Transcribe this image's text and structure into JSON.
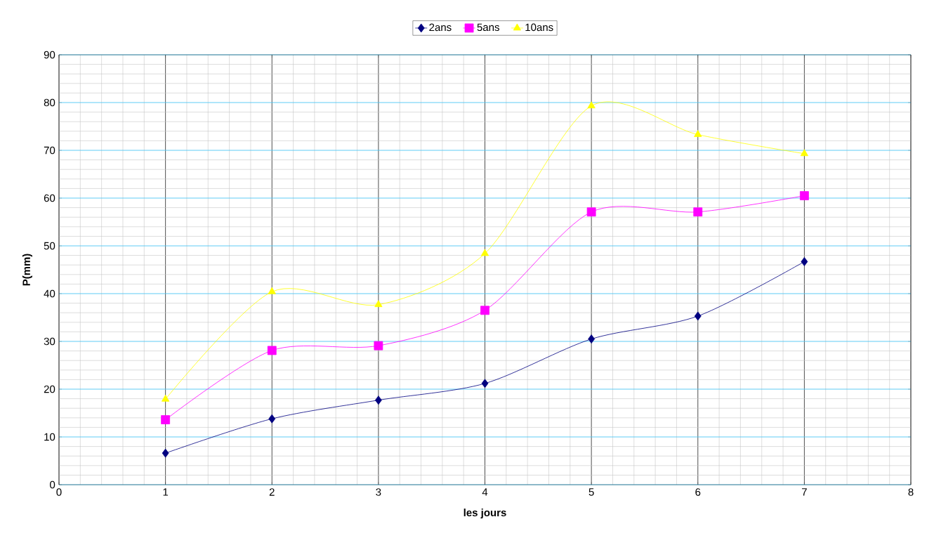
{
  "chart_data": {
    "type": "line",
    "xlabel": "les jours",
    "ylabel": "P(mm)",
    "x": [
      1,
      2,
      3,
      4,
      5,
      6,
      7
    ],
    "series": [
      {
        "name": "2ans",
        "color": "#000080",
        "marker": "diamond",
        "values": [
          6.6,
          13.8,
          17.7,
          21.2,
          30.5,
          35.3,
          46.7
        ]
      },
      {
        "name": "5ans",
        "color": "#ff00ff",
        "marker": "square",
        "values": [
          13.6,
          28.1,
          29.1,
          36.5,
          57.1,
          57.1,
          60.5
        ]
      },
      {
        "name": "10ans",
        "color": "#ffff00",
        "marker": "triangle",
        "values": [
          17.9,
          40.4,
          37.7,
          48.4,
          79.3,
          73.3,
          69.3
        ]
      }
    ],
    "xlim": [
      0,
      8
    ],
    "xticks": [
      0,
      1,
      2,
      3,
      4,
      5,
      6,
      7,
      8
    ],
    "ylim": [
      0,
      90
    ],
    "yticks": [
      0,
      10,
      20,
      30,
      40,
      50,
      60,
      70,
      80,
      90
    ],
    "grid": true,
    "legend": "top",
    "line_style": "solid"
  }
}
